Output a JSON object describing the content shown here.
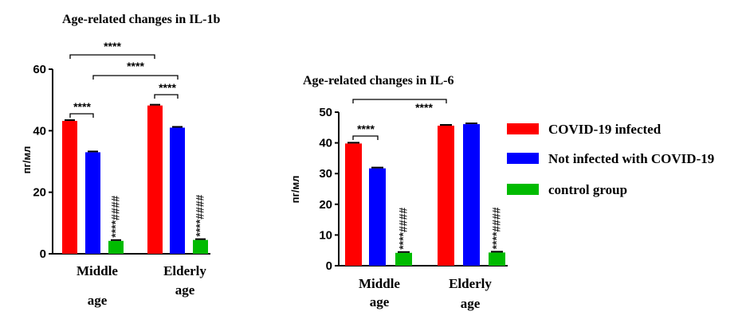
{
  "chart_data": [
    {
      "type": "bar",
      "title": "Age-related changes in IL-1b",
      "ylabel": "пг/мл",
      "ylim": [
        0,
        60
      ],
      "yticks": [
        "0",
        "20",
        "40",
        "60"
      ],
      "categories": [
        {
          "line1": "Middle",
          "line2": "age"
        },
        {
          "line1": "Elderly",
          "line2": "age"
        }
      ],
      "series": [
        {
          "name": "COVID-19 infected",
          "color": "#ff0000",
          "values": [
            43.2,
            48.2
          ]
        },
        {
          "name": "Not infected with COVID-19",
          "color": "#0000ff",
          "values": [
            33.0,
            41.0
          ]
        },
        {
          "name": "control group",
          "color": "#00bb00",
          "values": [
            4.2,
            4.5
          ]
        }
      ],
      "comparisons": [
        {
          "label": "****"
        },
        {
          "label": "****"
        },
        {
          "label": "****"
        },
        {
          "label": "****"
        }
      ],
      "bar_marks": [
        "****####",
        "****####"
      ]
    },
    {
      "type": "bar",
      "title": "Age-related changes in IL-6",
      "ylabel": "пг/мл",
      "ylim": [
        0,
        50
      ],
      "yticks": [
        "0",
        "10",
        "20",
        "30",
        "40",
        "50"
      ],
      "categories": [
        {
          "line1": "Middle",
          "line2": "age"
        },
        {
          "line1": "Elderly",
          "line2": "age"
        }
      ],
      "series": [
        {
          "name": "COVID-19 infected",
          "color": "#ff0000",
          "values": [
            39.8,
            45.6
          ]
        },
        {
          "name": "Not infected with COVID-19",
          "color": "#0000ff",
          "values": [
            31.7,
            46.1
          ]
        },
        {
          "name": "control group",
          "color": "#00bb00",
          "values": [
            4.2,
            4.3
          ]
        }
      ],
      "comparisons": [
        {
          "label": "****"
        },
        {
          "label": "****"
        }
      ],
      "bar_marks": [
        "****####",
        "****####"
      ]
    }
  ],
  "legend": [
    {
      "label": "COVID-19 infected",
      "color": "#ff0000"
    },
    {
      "label": "Not infected with COVID-19",
      "color": "#0000ff"
    },
    {
      "label": "control group",
      "color": "#00bb00"
    }
  ]
}
